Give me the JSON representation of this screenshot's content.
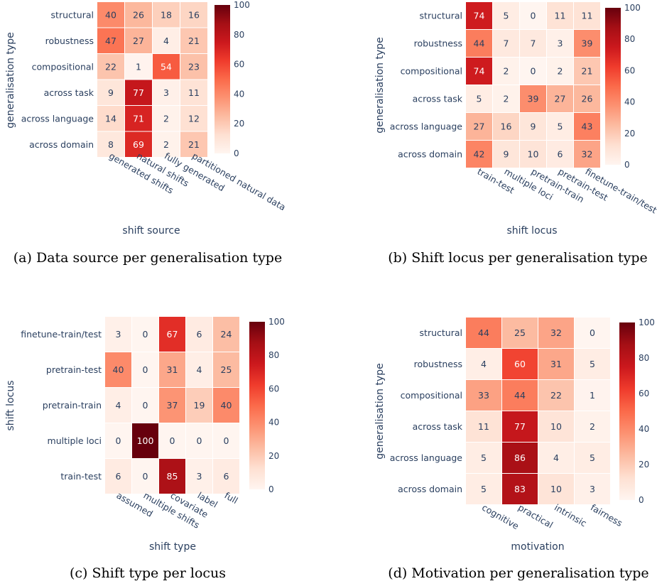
{
  "colorscale": [
    "#fff5f0",
    "#fee0d2",
    "#fcbba1",
    "#fc9272",
    "#fb6a4a",
    "#ef3b2c",
    "#cb181d",
    "#a50f15",
    "#67000d"
  ],
  "chart_data": [
    {
      "type": "heatmap",
      "caption": "(a) Data source per generalisation type",
      "xlabel": "shift source",
      "ylabel": "generalisation type",
      "x": [
        "generated shifts",
        "natural shifts",
        "fully generated",
        "partitioned natural data"
      ],
      "y": [
        "structural",
        "robustness",
        "compositional",
        "across task",
        "across language",
        "across domain"
      ],
      "z": [
        [
          40,
          26,
          18,
          16
        ],
        [
          47,
          27,
          4,
          21
        ],
        [
          22,
          1,
          54,
          23
        ],
        [
          9,
          77,
          3,
          11
        ],
        [
          14,
          71,
          2,
          12
        ],
        [
          8,
          69,
          2,
          21
        ]
      ],
      "zrange": [
        0,
        100
      ],
      "colorbar_ticks": [
        "0",
        "20",
        "40",
        "60",
        "80",
        "100"
      ]
    },
    {
      "type": "heatmap",
      "caption": "(b) Shift locus per generalisation type",
      "xlabel": "shift locus",
      "ylabel": "generalisation type",
      "x": [
        "train-test",
        "multiple loci",
        "pretrain-train",
        "pretrain-test",
        "finetune-train/test"
      ],
      "y": [
        "structural",
        "robustness",
        "compositional",
        "across task",
        "across language",
        "across domain"
      ],
      "z": [
        [
          74,
          5,
          0,
          11,
          11
        ],
        [
          44,
          7,
          7,
          3,
          39
        ],
        [
          74,
          2,
          0,
          2,
          21
        ],
        [
          5,
          2,
          39,
          27,
          26
        ],
        [
          27,
          16,
          9,
          5,
          43
        ],
        [
          42,
          9,
          10,
          6,
          32
        ]
      ],
      "zrange": [
        0,
        100
      ],
      "colorbar_ticks": [
        "0",
        "20",
        "40",
        "60",
        "80",
        "100"
      ]
    },
    {
      "type": "heatmap",
      "caption": "(c) Shift type per locus",
      "xlabel": "shift type",
      "ylabel": "shift locus",
      "x": [
        "assumed",
        "multiple shifts",
        "covariate",
        "label",
        "full"
      ],
      "y": [
        "finetune-train/test",
        "pretrain-test",
        "pretrain-train",
        "multiple loci",
        "train-test"
      ],
      "z": [
        [
          3,
          0,
          67,
          6,
          24
        ],
        [
          40,
          0,
          31,
          4,
          25
        ],
        [
          4,
          0,
          37,
          19,
          40
        ],
        [
          0,
          100,
          0,
          0,
          0
        ],
        [
          6,
          0,
          85,
          3,
          6
        ]
      ],
      "zrange": [
        0,
        100
      ],
      "colorbar_ticks": [
        "0",
        "20",
        "40",
        "60",
        "80",
        "100"
      ]
    },
    {
      "type": "heatmap",
      "caption": "(d) Motivation per generalisation type",
      "xlabel": "motivation",
      "ylabel": "generalisation type",
      "x": [
        "cognitive",
        "practical",
        "intrinsic",
        "fairness"
      ],
      "y": [
        "structural",
        "robustness",
        "compositional",
        "across task",
        "across language",
        "across domain"
      ],
      "z": [
        [
          44,
          25,
          32,
          0
        ],
        [
          4,
          60,
          31,
          5
        ],
        [
          33,
          44,
          22,
          1
        ],
        [
          11,
          77,
          10,
          2
        ],
        [
          5,
          86,
          4,
          5
        ],
        [
          5,
          83,
          10,
          3
        ]
      ],
      "zrange": [
        0,
        100
      ],
      "colorbar_ticks": [
        "0",
        "20",
        "40",
        "60",
        "80",
        "100"
      ]
    }
  ]
}
